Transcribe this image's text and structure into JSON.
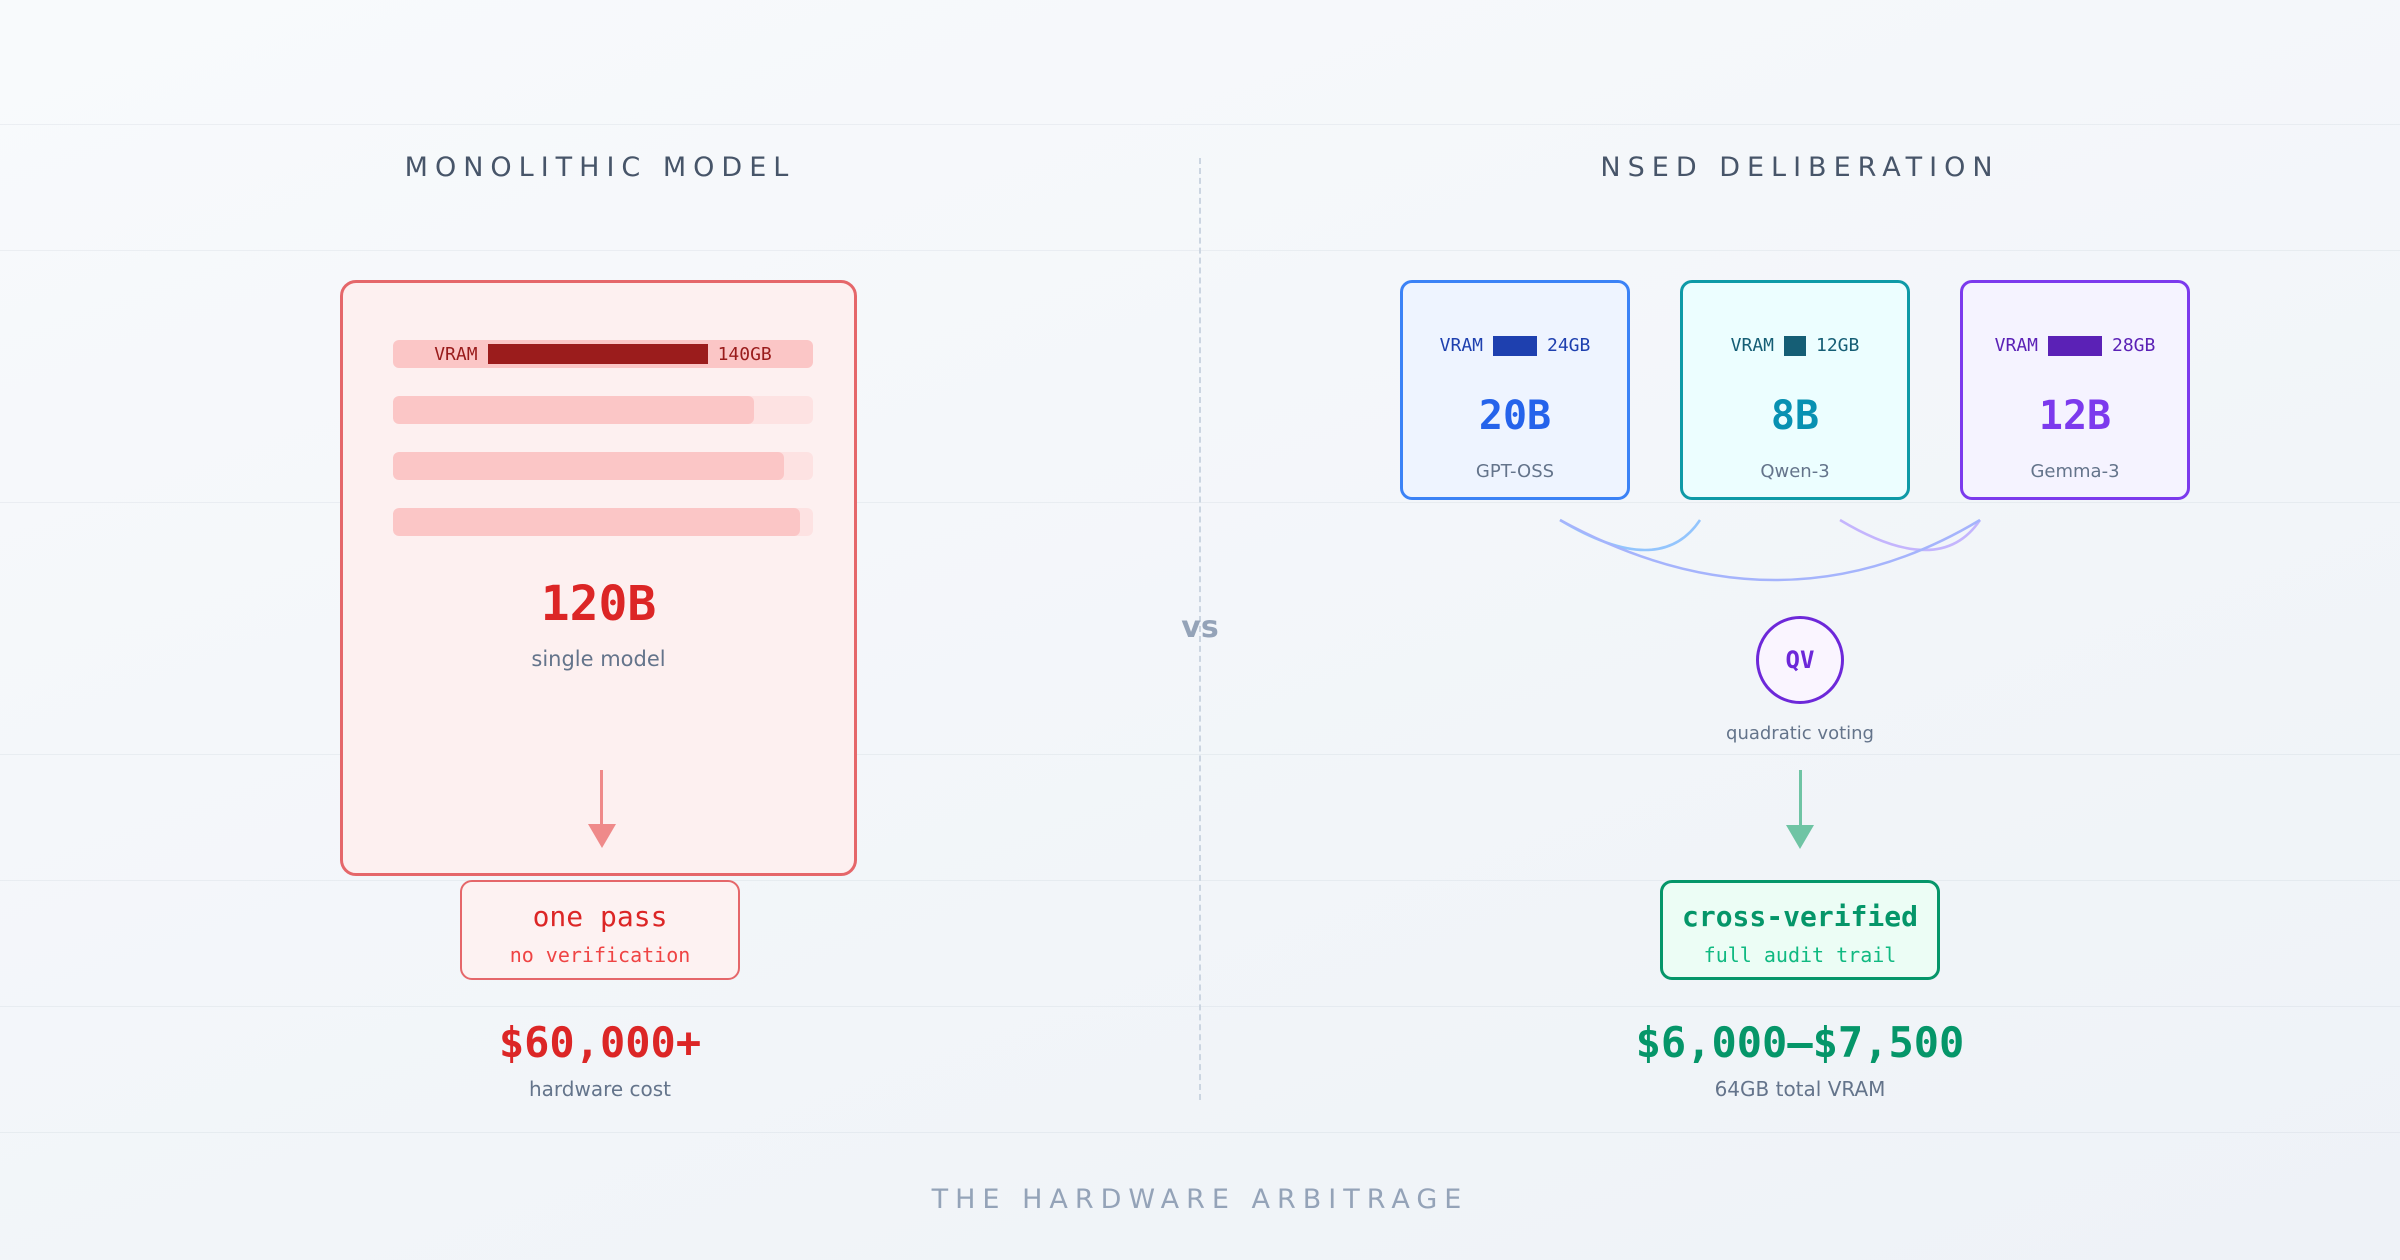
{
  "left": {
    "heading": "MONOLITHIC MODEL",
    "vram_label": "VRAM",
    "vram_size": "140GB",
    "bars": [
      0.86,
      0.93,
      0.97
    ],
    "model_size": "120B",
    "model_desc": "single model",
    "result_title": "one pass",
    "result_sub": "no verification",
    "cost": "$60,000+",
    "cost_label": "hardware cost"
  },
  "vs": "vs",
  "right": {
    "heading": "NSED DELIBERATION",
    "models": [
      {
        "vram_label": "VRAM",
        "vram_size": "24GB",
        "size": "20B",
        "name": "GPT-OSS",
        "color": "#2563eb"
      },
      {
        "vram_label": "VRAM",
        "vram_size": "12GB",
        "size": "8B",
        "name": "Qwen-3",
        "color": "#0891b2"
      },
      {
        "vram_label": "VRAM",
        "vram_size": "28GB",
        "size": "12B",
        "name": "Gemma-3",
        "color": "#7c3aed"
      }
    ],
    "voting_abbr": "QV",
    "voting_label": "quadratic voting",
    "result_title": "cross-verified",
    "result_sub": "full audit trail",
    "cost": "$6,000–$7,500",
    "cost_label": "64GB total VRAM"
  },
  "footer": "THE HARDWARE ARBITRAGE",
  "colors": {
    "red": "#dc2626",
    "green": "#059669",
    "slate": "#475569"
  }
}
